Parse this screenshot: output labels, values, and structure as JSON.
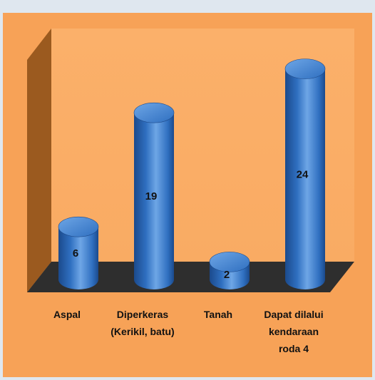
{
  "chart_data": {
    "type": "bar",
    "title": "",
    "xlabel": "",
    "ylabel": "",
    "categories": [
      [
        "Aspal"
      ],
      [
        "Diperkeras",
        "(Kerikil, batu)"
      ],
      [
        "Tanah"
      ],
      [
        "Dapat dilalui",
        "kendaraan",
        "roda 4"
      ]
    ],
    "values": [
      6,
      19,
      2,
      24
    ],
    "data_labels": [
      "6",
      "19",
      "2",
      "24"
    ],
    "ylim": [
      0,
      26
    ],
    "grid": false,
    "legend": "none",
    "style": "3d-cylinder"
  },
  "colors": {
    "outer_background": "#dfe7ef",
    "chart_area": "#f7a257",
    "plot_wall": "#f9ab63",
    "side_wall": "#9b5a1f",
    "floor": "#2e2e2e",
    "bar": "#2f6fc0",
    "bar_dark": "#1b4a8c",
    "bar_light": "#6ea6e6"
  }
}
